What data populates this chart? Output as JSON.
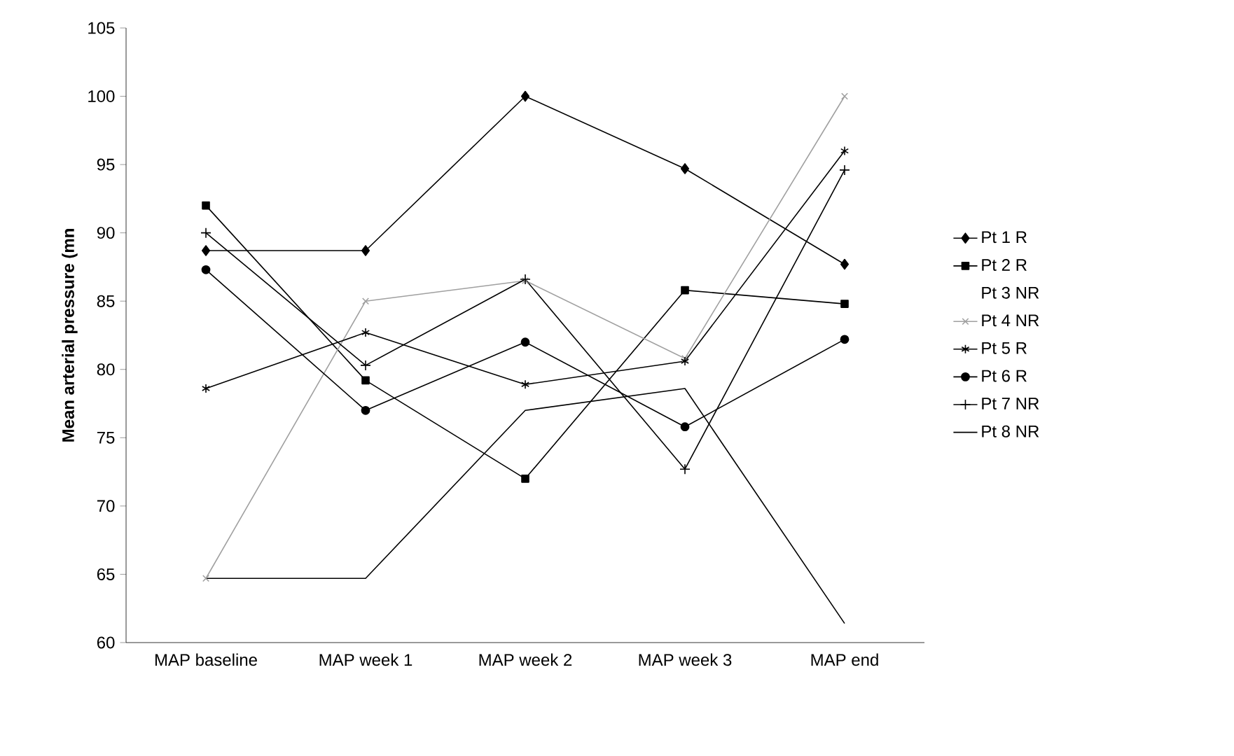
{
  "chart_data": {
    "type": "line",
    "ylabel": "Mean arterial pressure (mn",
    "categories": [
      "MAP baseline",
      "MAP week 1",
      "MAP week 2",
      "MAP week 3",
      "MAP end"
    ],
    "ylim": [
      60,
      105
    ],
    "yticks": [
      60,
      65,
      70,
      75,
      80,
      85,
      90,
      95,
      100,
      105
    ],
    "grid": false,
    "legend": "right",
    "series": [
      {
        "name": "Pt 1 R",
        "color": "#000000",
        "marker": "diamond",
        "values": [
          88.7,
          88.7,
          100,
          94.7,
          87.7
        ]
      },
      {
        "name": "Pt 2 R",
        "color": "#000000",
        "marker": "square",
        "values": [
          92,
          79.2,
          72,
          85.8,
          84.8
        ]
      },
      {
        "name": "Pt 3 NR",
        "marker": "none",
        "values": [
          null,
          null,
          null,
          null,
          null
        ]
      },
      {
        "name": "Pt 4 NR",
        "color": "#a0a0a0",
        "marker": "x",
        "values": [
          64.7,
          85,
          86.5,
          80.8,
          100
        ]
      },
      {
        "name": "Pt 5 R",
        "color": "#000000",
        "marker": "cross",
        "values": [
          78.6,
          82.7,
          78.9,
          80.6,
          96
        ]
      },
      {
        "name": "Pt 6 R",
        "color": "#000000",
        "marker": "circle",
        "values": [
          87.3,
          77,
          82,
          75.8,
          82.2
        ]
      },
      {
        "name": "Pt 7 NR",
        "color": "#000000",
        "marker": "plus",
        "values": [
          90,
          80.3,
          86.6,
          72.7,
          94.6
        ]
      },
      {
        "name": "Pt 8 NR",
        "color": "#000000",
        "marker": "none",
        "values": [
          64.7,
          64.7,
          77,
          78.6,
          61.4
        ]
      }
    ]
  }
}
